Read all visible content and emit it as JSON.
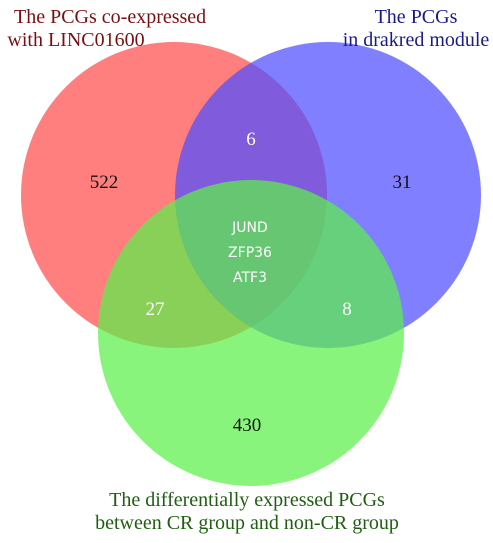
{
  "sets": {
    "red": {
      "label_lines": [
        "The PCGs co-expressed",
        "with LINC01600"
      ],
      "fill": "#ff4d4d",
      "text_color": "#7a0f12"
    },
    "blue": {
      "label_lines": [
        "The PCGs",
        "in drakred module"
      ],
      "fill": "#4f4dff",
      "text_color": "#1a1a8c"
    },
    "green": {
      "label_lines": [
        "The differentially expressed PCGs",
        "between CR group and non-CR group"
      ],
      "fill": "#5cf04a",
      "text_color": "#1f5e12"
    }
  },
  "regions": {
    "red_only": "522",
    "blue_only": "31",
    "green_only": "430",
    "red_blue": "6",
    "red_green": "27",
    "blue_green": "8",
    "all_three": [
      "JUND",
      "ZFP36",
      "ATF3"
    ]
  },
  "colors": {
    "count_dark": "#111111",
    "count_light": "#ffffff"
  }
}
